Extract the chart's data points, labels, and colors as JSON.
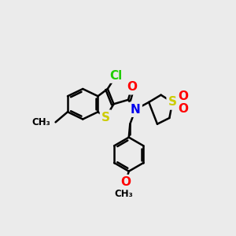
{
  "bg_color": "#ebebeb",
  "atom_colors": {
    "C": "#000000",
    "Cl": "#22cc00",
    "O": "#ff0000",
    "N": "#0000ee",
    "S": "#cccc00",
    "H": "#000000"
  },
  "bond_color": "#000000",
  "bond_width": 1.8,
  "font_size_atom": 11,
  "title": ""
}
